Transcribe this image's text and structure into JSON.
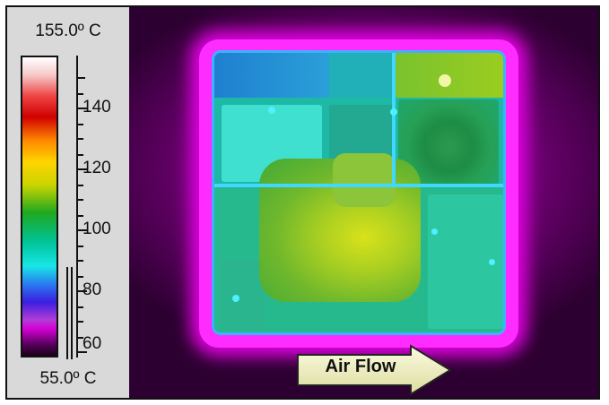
{
  "scale": {
    "max_label": "155.0º C",
    "min_label": "55.0º C",
    "min_value": 55.0,
    "max_value": 155.0,
    "ticks": [
      "140",
      "120",
      "100",
      "80",
      "60"
    ]
  },
  "image": {
    "airflow_label": "Air Flow"
  },
  "colors": {
    "panel": "#d9d9d9",
    "hot": "#d8e21a",
    "cool": "#1f7fd0",
    "background": "#8a008f"
  }
}
